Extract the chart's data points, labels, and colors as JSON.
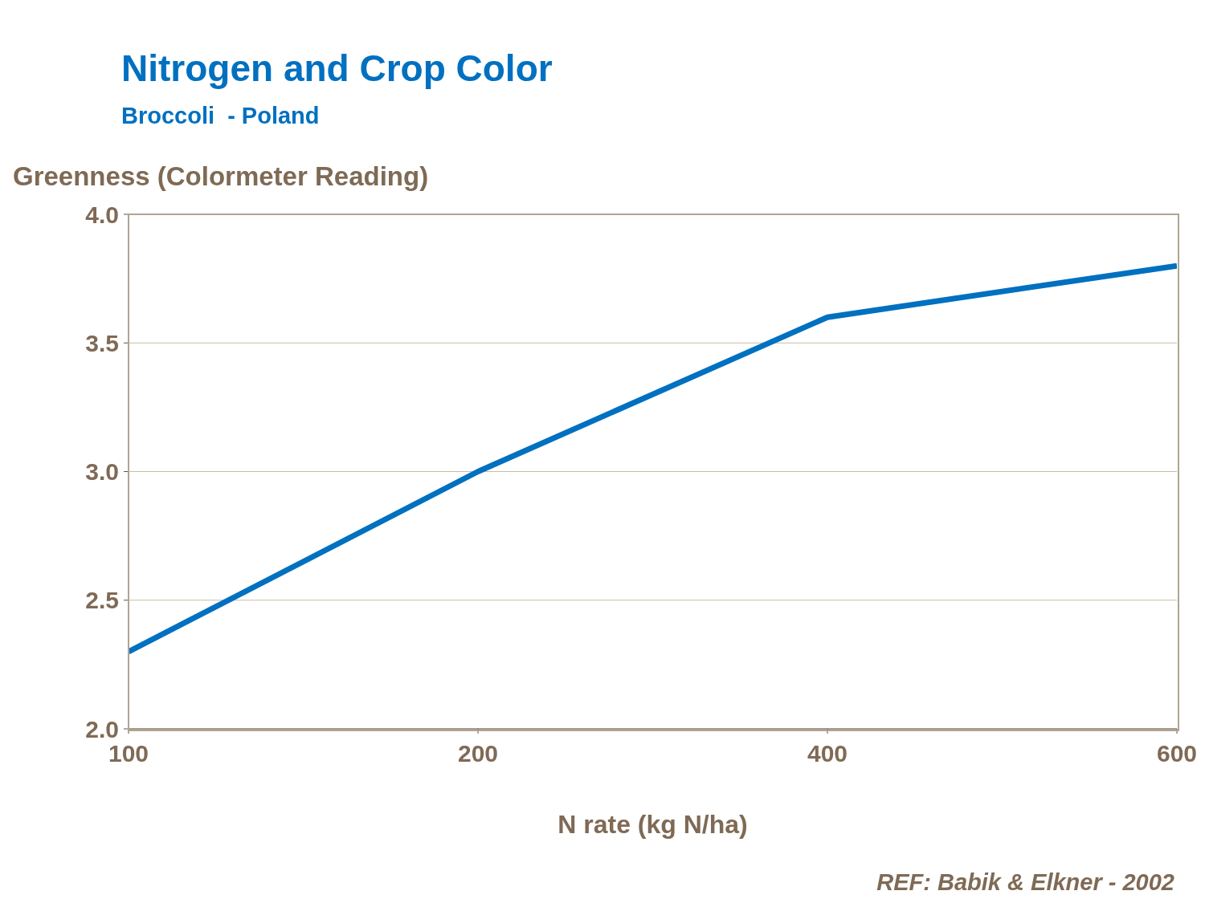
{
  "chart_data": {
    "type": "line",
    "title": "Nitrogen and Crop Color",
    "subtitle": "Broccoli  - Poland",
    "ylabel": "Greenness (Colormeter Reading)",
    "xlabel": "N rate (kg N/ha)",
    "annotations": [
      "REF: Babik & Elkner - 2002"
    ],
    "categories": [
      "100",
      "200",
      "400",
      "600"
    ],
    "series": [
      {
        "color": "#0070c0",
        "values": [
          2.3,
          3.0,
          3.6,
          3.8
        ]
      }
    ],
    "ylim": [
      2.0,
      4.0
    ],
    "yticks": [
      {
        "value": 2.0,
        "label": "2.0"
      },
      {
        "value": 2.5,
        "label": "2.5"
      },
      {
        "value": 3.0,
        "label": "3.0"
      },
      {
        "value": 3.5,
        "label": "3.5"
      },
      {
        "value": 4.0,
        "label": "4.0"
      }
    ],
    "grid": "y",
    "marker": "none",
    "line_style": "solid",
    "legend": false
  }
}
